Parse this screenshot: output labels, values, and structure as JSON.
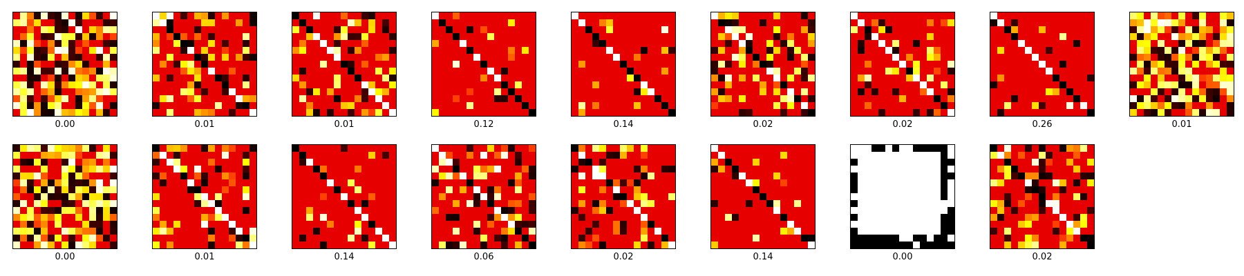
{
  "chart_data": {
    "type": "heatmap",
    "colormap": "hot",
    "grid": false,
    "matrix_size": 15,
    "layout": {
      "rows": 2,
      "cols": 9
    },
    "panels": [
      {
        "label": "0.00",
        "pattern": "dense"
      },
      {
        "label": "0.01",
        "pattern": "medium"
      },
      {
        "label": "0.01",
        "pattern": "medium"
      },
      {
        "label": "0.12",
        "pattern": "sparse"
      },
      {
        "label": "0.14",
        "pattern": "sparse"
      },
      {
        "label": "0.02",
        "pattern": "medium"
      },
      {
        "label": "0.02",
        "pattern": "medium"
      },
      {
        "label": "0.26",
        "pattern": "sparse"
      },
      {
        "label": "0.01",
        "pattern": "dense"
      },
      {
        "label": "0.00",
        "pattern": "dense"
      },
      {
        "label": "0.01",
        "pattern": "medium"
      },
      {
        "label": "0.14",
        "pattern": "sparse"
      },
      {
        "label": "0.06",
        "pattern": "medium"
      },
      {
        "label": "0.02",
        "pattern": "medium"
      },
      {
        "label": "0.14",
        "pattern": "sparse"
      },
      {
        "label": "0.00",
        "pattern": "frame"
      },
      {
        "label": "0.02",
        "pattern": "medium"
      }
    ]
  }
}
